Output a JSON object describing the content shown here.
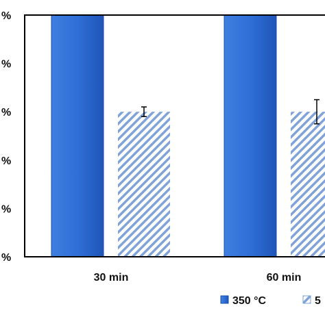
{
  "chart_data": {
    "type": "bar",
    "categories": [
      "30 min",
      "60 min"
    ],
    "y_tick_labels": [
      "%",
      "%",
      "%",
      "%",
      "%",
      "%"
    ],
    "ylim": [
      0,
      5
    ],
    "series": [
      {
        "name": "350 °C",
        "values": [
          5,
          5
        ],
        "error": [
          null,
          null
        ],
        "color": "#2f6fd6",
        "fill_style": "solid-gradient"
      },
      {
        "name": "5",
        "values": [
          3,
          3
        ],
        "error": [
          0.1,
          0.25
        ],
        "color": "#7fa3d9",
        "fill_style": "diagonal-hatch"
      }
    ],
    "legend_position": "bottom-right",
    "grid": false
  }
}
